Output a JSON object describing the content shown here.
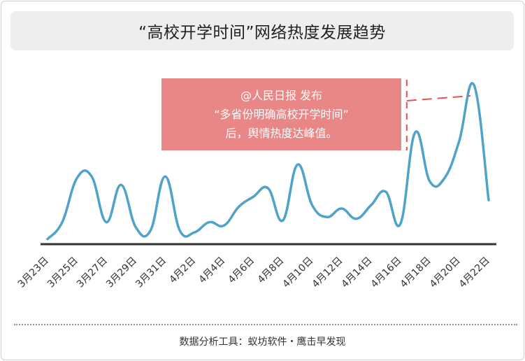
{
  "title": "“高校开学时间”网络热度发展趋势",
  "annotation": {
    "lines": [
      "@人民日报 发布",
      "“多省份明确高校开学时间”",
      "后，舆情热度达峰值。"
    ],
    "box_color": "#e98686",
    "dash_color": "#e05555"
  },
  "footer": "数据分析工具：蚁坊软件・鹰击早发现",
  "chart_data": {
    "type": "line",
    "title": "“高校开学时间”网络热度发展趋势",
    "xlabel": "",
    "ylabel": "",
    "grid": false,
    "line_color": "#4fa3c9",
    "axis_color": "#333333",
    "ylim": [
      0,
      100
    ],
    "x": [
      "3月23日",
      "3月24日",
      "3月25日",
      "3月26日",
      "3月27日",
      "3月28日",
      "3月29日",
      "3月30日",
      "3月31日",
      "4月1日",
      "4月2日",
      "4月3日",
      "4月4日",
      "4月5日",
      "4月6日",
      "4月7日",
      "4月8日",
      "4月9日",
      "4月10日",
      "4月11日",
      "4月12日",
      "4月13日",
      "4月14日",
      "4月15日",
      "4月16日",
      "4月17日",
      "4月18日",
      "4月19日",
      "4月20日",
      "4月21日",
      "4月22日"
    ],
    "tick_labels": [
      "3月23日",
      "3月25日",
      "3月27日",
      "3月29日",
      "3月31日",
      "4月2日",
      "4月4日",
      "4月6日",
      "4月8日",
      "4月10日",
      "4月12日",
      "4月14日",
      "4月16日",
      "4月18日",
      "4月20日",
      "4月22日"
    ],
    "values": [
      3,
      13,
      39,
      40,
      13,
      35,
      10,
      8,
      40,
      8,
      7,
      13,
      11,
      22,
      28,
      33,
      14,
      47,
      23,
      16,
      21,
      15,
      23,
      31,
      12,
      66,
      37,
      39,
      61,
      94,
      26
    ]
  }
}
